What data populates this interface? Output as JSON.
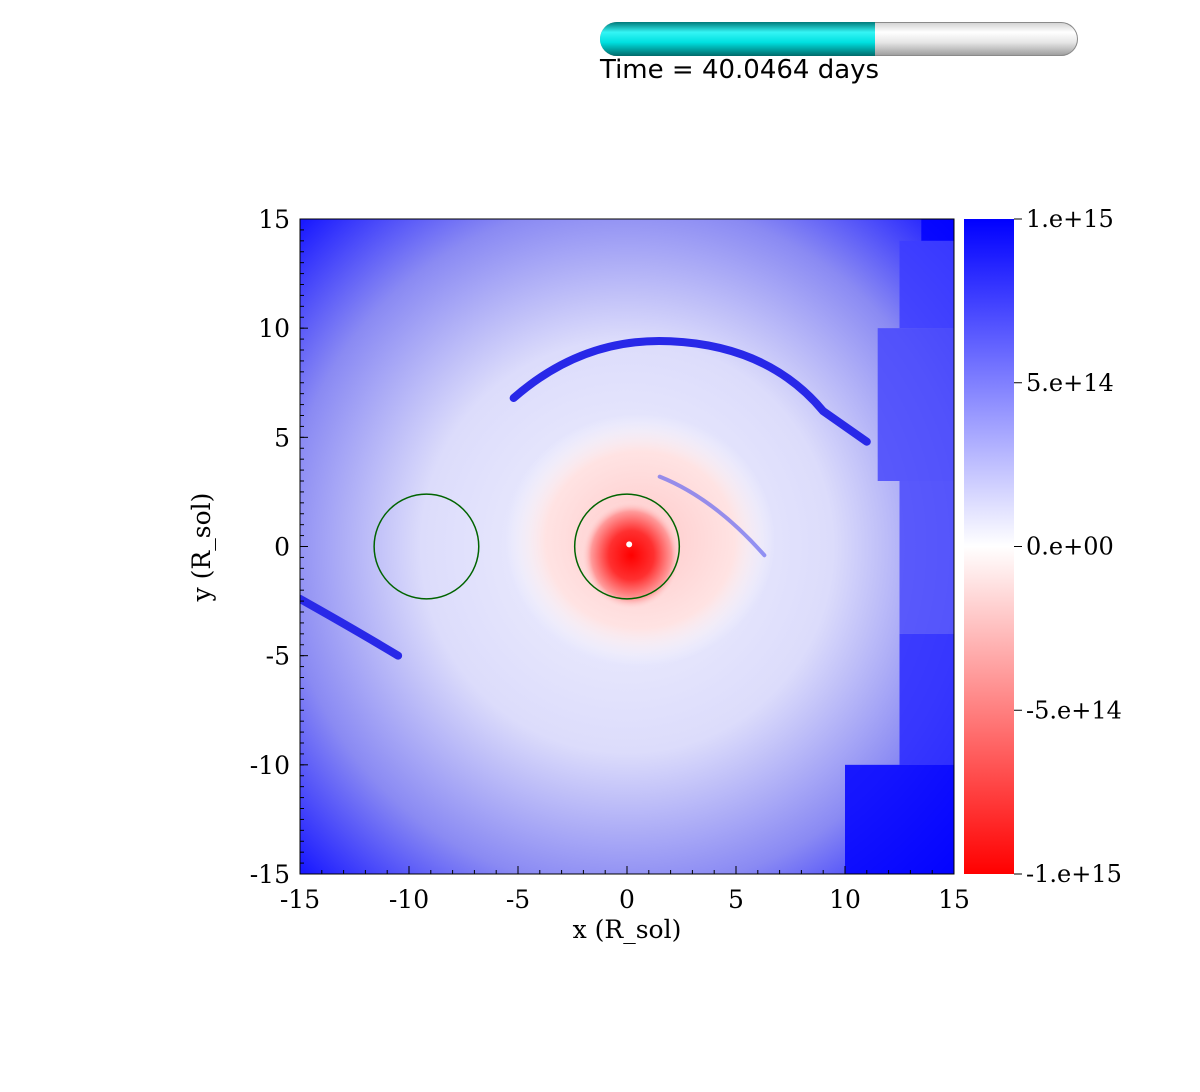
{
  "time_display": {
    "label": "Time = 40.0464 days",
    "progress_fraction": 0.575,
    "fill_color": "#00e6e6",
    "track_color": "#e0e0e0"
  },
  "chart_data": {
    "type": "heatmap",
    "title": "",
    "xlabel": "x (R_sol)",
    "ylabel": "y (R_sol)",
    "xlim": [
      -15,
      15
    ],
    "ylim": [
      -15,
      15
    ],
    "x_ticks": [
      -15,
      -10,
      -5,
      0,
      5,
      10,
      15
    ],
    "y_ticks": [
      -15,
      -10,
      -5,
      0,
      5,
      10,
      15
    ],
    "x_tick_labels": [
      "-15",
      "-10",
      "-5",
      "0",
      "5",
      "10",
      "15"
    ],
    "y_tick_labels": [
      "-15",
      "-10",
      "-5",
      "0",
      "5",
      "10",
      "15"
    ],
    "colorbar": {
      "min": -1000000000000000.0,
      "max": 1000000000000000.0,
      "ticks": [
        1000000000000000.0,
        500000000000000.0,
        0,
        -500000000000000.0,
        -1000000000000000.0
      ],
      "tick_labels": [
        "1.e+15",
        "5.e+14",
        "0.e+00",
        "-5.e+14",
        "-1.e+15"
      ],
      "colors": [
        "#0000ff",
        "#ffffff",
        "#ff0000"
      ]
    },
    "overlay_circles": [
      {
        "name": "",
        "cx": -9.2,
        "cy": 0,
        "r": 2.4,
        "color": "#006400"
      },
      {
        "name": "",
        "cx": 0,
        "cy": 0,
        "r": 2.4,
        "color": "#006400"
      }
    ],
    "features": {
      "central_negative_core": {
        "x": 0.2,
        "y": -0.4,
        "value": -1000000000000000.0
      },
      "background_value": 800000000000000.0
    }
  }
}
